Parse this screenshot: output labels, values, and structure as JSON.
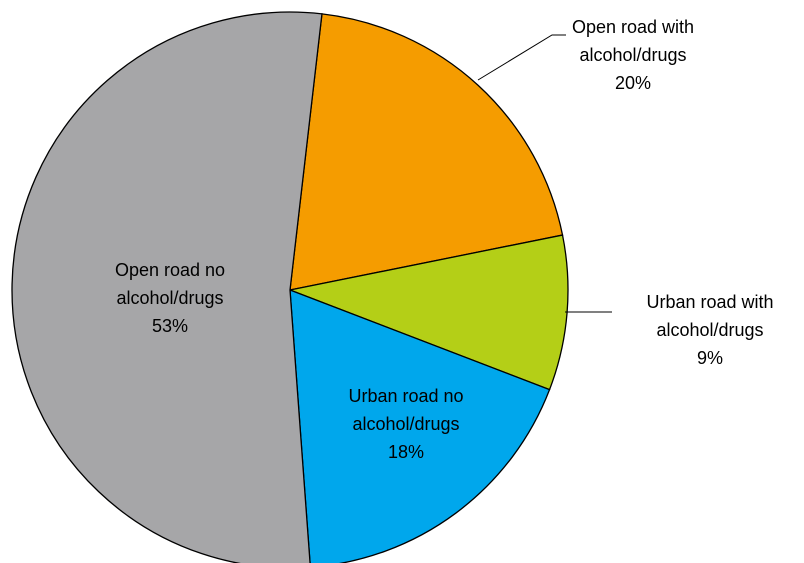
{
  "chart_data": {
    "type": "pie",
    "categories": [
      "Open road with alcohol/drugs",
      "Urban road with alcohol/drugs",
      "Urban road no alcohol/drugs",
      "Open road no alcohol/drugs"
    ],
    "values": [
      20,
      9,
      18,
      53
    ],
    "value_labels": [
      "20%",
      "9%",
      "18%",
      "53%"
    ],
    "colors": [
      "#f59c00",
      "#b4cf17",
      "#00a7ec",
      "#a6a6a8"
    ]
  }
}
